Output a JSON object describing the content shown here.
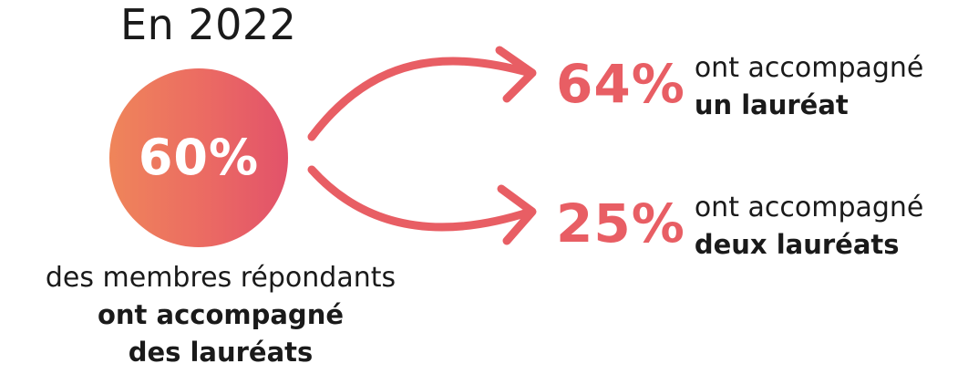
{
  "header": {
    "year_label": "En 2022"
  },
  "main_stat": {
    "value": "60%",
    "caption_line1": "des membres répondants",
    "caption_line2": "ont accompagné",
    "caption_line3": "des lauréats"
  },
  "breakdown": [
    {
      "value": "64%",
      "line1": "ont accompagné",
      "line2": "un lauréat"
    },
    {
      "value": "25%",
      "line1": "ont accompagné",
      "line2": "deux lauréats"
    }
  ],
  "colors": {
    "accent": "#e85e64",
    "gradient_start": "#ef855a",
    "gradient_end": "#e2526a",
    "text": "#1a1a1a"
  }
}
